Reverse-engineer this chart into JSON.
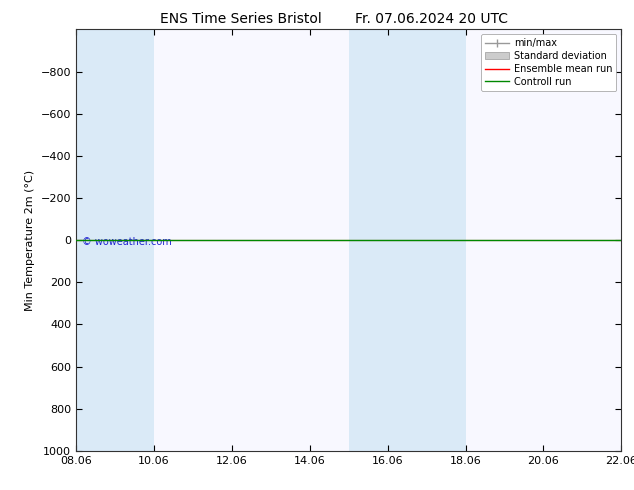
{
  "title": "ENS Time Series Bristol",
  "title2": "Fr. 07.06.2024 20 UTC",
  "ylabel": "Min Temperature 2m (°C)",
  "watermark": "© woweather.com",
  "ylim_bottom": 1000,
  "ylim_top": -1000,
  "yticks": [
    -800,
    -600,
    -400,
    -200,
    0,
    200,
    400,
    600,
    800,
    1000
  ],
  "xtick_labels": [
    "08.06",
    "10.06",
    "12.06",
    "14.06",
    "16.06",
    "18.06",
    "20.06",
    "22.06"
  ],
  "xtick_positions": [
    0,
    2,
    4,
    6,
    8,
    10,
    12,
    14
  ],
  "xmin": 0,
  "xmax": 14,
  "shaded_bands": [
    {
      "xmin": 0,
      "xmax": 2
    },
    {
      "xmin": 7,
      "xmax": 9
    },
    {
      "xmin": 9,
      "xmax": 10
    },
    {
      "xmin": 14,
      "xmax": 14.5
    }
  ],
  "shaded_color": "#daeaf7",
  "line_y": 0,
  "ensemble_mean_color": "#ff0000",
  "control_run_color": "#008800",
  "minmax_color": "#999999",
  "std_color": "#cccccc",
  "legend_entries": [
    "min/max",
    "Standard deviation",
    "Ensemble mean run",
    "Controll run"
  ],
  "background_color": "#ffffff",
  "plot_bg_color": "#f8f8ff",
  "title_fontsize": 10,
  "axis_fontsize": 8,
  "tick_fontsize": 8,
  "legend_fontsize": 7
}
